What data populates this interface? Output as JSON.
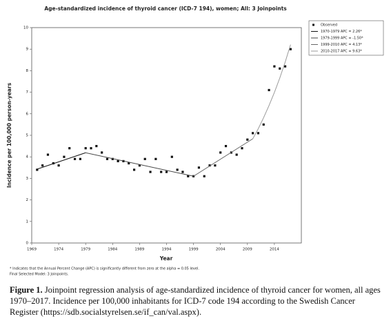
{
  "chart_data": {
    "type": "scatter",
    "title": "Age-standardized incidence of thyroid cancer (ICD-7 194), women; All: 3 Joinpoints",
    "x_label": "Year",
    "y_label": "Incidence per 100,000 person-years",
    "xlim": [
      1969,
      2019
    ],
    "xticks": [
      1969,
      1974,
      1979,
      1984,
      1989,
      1994,
      1999,
      2004,
      2009,
      2014
    ],
    "ylim": [
      0,
      10
    ],
    "yticks": [
      0,
      1,
      2,
      3,
      4,
      5,
      6,
      7,
      8,
      9,
      10
    ],
    "grid": false,
    "legend": "right",
    "series": [
      {
        "name": "Observed",
        "type": "scatter",
        "color": "#111111",
        "x": [
          1970,
          1971,
          1972,
          1973,
          1974,
          1975,
          1976,
          1977,
          1978,
          1979,
          1980,
          1981,
          1982,
          1983,
          1984,
          1985,
          1986,
          1987,
          1988,
          1989,
          1990,
          1991,
          1992,
          1993,
          1994,
          1995,
          1996,
          1997,
          1998,
          1999,
          2000,
          2001,
          2002,
          2003,
          2004,
          2005,
          2006,
          2007,
          2008,
          2009,
          2010,
          2011,
          2012,
          2013,
          2014,
          2015,
          2016,
          2017
        ],
        "values": [
          3.4,
          3.6,
          4.1,
          3.7,
          3.6,
          4.0,
          4.4,
          3.9,
          3.9,
          4.4,
          4.4,
          4.5,
          4.2,
          3.9,
          3.9,
          3.8,
          3.8,
          3.7,
          3.4,
          3.6,
          3.9,
          3.3,
          3.9,
          3.3,
          3.3,
          4.0,
          3.4,
          3.3,
          3.1,
          3.1,
          3.5,
          3.1,
          3.6,
          3.6,
          4.2,
          4.5,
          4.2,
          4.1,
          4.4,
          4.8,
          5.1,
          5.1,
          5.5,
          7.1,
          8.2,
          8.1,
          8.2,
          9.0
        ]
      },
      {
        "name": "1970-1979 APC = 2.26*",
        "type": "line",
        "color": "#111111",
        "x": [
          1970,
          1979
        ],
        "values": [
          3.43,
          4.19
        ]
      },
      {
        "name": "1979-1999 APC = -1.50*",
        "type": "line",
        "color": "#444444",
        "x": [
          1979,
          1999
        ],
        "values": [
          4.19,
          3.1
        ]
      },
      {
        "name": "1999-2010 APC = 4.13*",
        "type": "line",
        "color": "#666666",
        "x": [
          1999,
          2010
        ],
        "values": [
          3.1,
          4.84
        ]
      },
      {
        "name": "2010-2017 APC = 9.63*",
        "type": "line",
        "color": "#9a9a9a",
        "x": [
          2010,
          2011,
          2012,
          2013,
          2014,
          2015,
          2016,
          2017
        ],
        "values": [
          4.84,
          5.3,
          5.82,
          6.38,
          6.99,
          7.66,
          8.4,
          9.21
        ]
      }
    ],
    "footnotes": [
      "* Indicates that the Annual Percent Change (APC) is significantly different from zero at the alpha = 0.05 level.",
      "Final Selected Model: 3 Joinpoints."
    ]
  },
  "caption": {
    "label": "Figure 1.",
    "text": "Joinpoint regression analysis of age-standardized incidence of thyroid cancer for women, all ages 1970–2017. Incidence per 100,000 inhabitants for ICD-7 code 194 according to the Swedish Cancer Register (https://sdb.socialstyrelsen.se/if_can/val.aspx)."
  }
}
